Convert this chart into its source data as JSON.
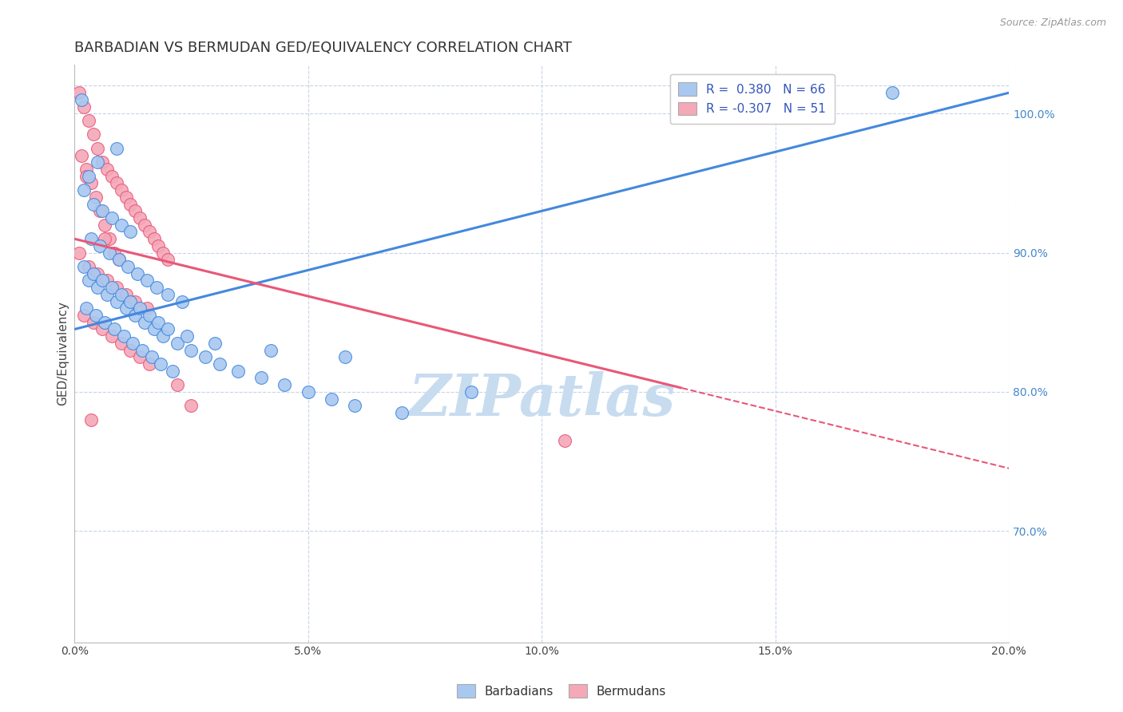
{
  "title": "BARBADIAN VS BERMUDAN GED/EQUIVALENCY CORRELATION CHART",
  "source": "Source: ZipAtlas.com",
  "ylabel": "GED/Equivalency",
  "x_min": 0.0,
  "x_max": 20.0,
  "y_min": 62.0,
  "y_max": 103.5,
  "yticks": [
    70.0,
    80.0,
    90.0,
    100.0
  ],
  "xticks": [
    0.0,
    5.0,
    10.0,
    15.0,
    20.0
  ],
  "blue_R": 0.38,
  "blue_N": 66,
  "pink_R": -0.307,
  "pink_N": 51,
  "blue_color": "#A8C8F0",
  "pink_color": "#F4A8B8",
  "blue_line_color": "#4488DD",
  "pink_line_color": "#E85878",
  "right_tick_color": "#4488CC",
  "watermark_color": "#C8DCF0",
  "legend_text_color": "#3355BB",
  "background_color": "#FFFFFF",
  "grid_color": "#C8D4E8",
  "title_fontsize": 13,
  "axis_fontsize": 10,
  "legend_fontsize": 11,
  "pink_solid_end": 13.0,
  "blue_line_x0": 0.0,
  "blue_line_y0": 84.5,
  "blue_line_x1": 20.0,
  "blue_line_y1": 101.5,
  "pink_line_x0": 0.0,
  "pink_line_y0": 91.0,
  "pink_line_x1": 20.0,
  "pink_line_y1": 74.5,
  "blue_points_x": [
    0.15,
    0.9,
    0.5,
    0.3,
    0.2,
    0.4,
    0.6,
    0.8,
    1.0,
    1.2,
    0.35,
    0.55,
    0.75,
    0.95,
    1.15,
    1.35,
    1.55,
    1.75,
    2.0,
    2.3,
    0.25,
    0.45,
    0.65,
    0.85,
    1.05,
    1.25,
    1.45,
    1.65,
    1.85,
    2.1,
    0.3,
    0.5,
    0.7,
    0.9,
    1.1,
    1.3,
    1.5,
    1.7,
    1.9,
    2.2,
    2.5,
    2.8,
    3.1,
    3.5,
    4.0,
    4.5,
    5.0,
    5.5,
    6.0,
    7.0,
    0.2,
    0.4,
    0.6,
    0.8,
    1.0,
    1.2,
    1.4,
    1.6,
    1.8,
    2.0,
    2.4,
    3.0,
    4.2,
    5.8,
    17.5,
    8.5
  ],
  "blue_points_y": [
    101.0,
    97.5,
    96.5,
    95.5,
    94.5,
    93.5,
    93.0,
    92.5,
    92.0,
    91.5,
    91.0,
    90.5,
    90.0,
    89.5,
    89.0,
    88.5,
    88.0,
    87.5,
    87.0,
    86.5,
    86.0,
    85.5,
    85.0,
    84.5,
    84.0,
    83.5,
    83.0,
    82.5,
    82.0,
    81.5,
    88.0,
    87.5,
    87.0,
    86.5,
    86.0,
    85.5,
    85.0,
    84.5,
    84.0,
    83.5,
    83.0,
    82.5,
    82.0,
    81.5,
    81.0,
    80.5,
    80.0,
    79.5,
    79.0,
    78.5,
    89.0,
    88.5,
    88.0,
    87.5,
    87.0,
    86.5,
    86.0,
    85.5,
    85.0,
    84.5,
    84.0,
    83.5,
    83.0,
    82.5,
    101.5,
    80.0
  ],
  "pink_points_x": [
    0.1,
    0.2,
    0.3,
    0.4,
    0.5,
    0.6,
    0.7,
    0.8,
    0.9,
    1.0,
    1.1,
    1.2,
    1.3,
    1.4,
    1.5,
    1.6,
    1.7,
    1.8,
    1.9,
    2.0,
    0.15,
    0.25,
    0.35,
    0.45,
    0.55,
    0.65,
    0.75,
    0.85,
    0.95,
    0.3,
    0.5,
    0.7,
    0.9,
    1.1,
    1.3,
    1.55,
    0.2,
    0.4,
    0.6,
    0.8,
    1.0,
    1.2,
    1.4,
    1.6,
    2.2,
    2.5,
    0.35,
    0.65,
    10.5,
    0.1,
    0.25
  ],
  "pink_points_y": [
    101.5,
    100.5,
    99.5,
    98.5,
    97.5,
    96.5,
    96.0,
    95.5,
    95.0,
    94.5,
    94.0,
    93.5,
    93.0,
    92.5,
    92.0,
    91.5,
    91.0,
    90.5,
    90.0,
    89.5,
    97.0,
    96.0,
    95.0,
    94.0,
    93.0,
    92.0,
    91.0,
    90.0,
    89.5,
    89.0,
    88.5,
    88.0,
    87.5,
    87.0,
    86.5,
    86.0,
    85.5,
    85.0,
    84.5,
    84.0,
    83.5,
    83.0,
    82.5,
    82.0,
    80.5,
    79.0,
    78.0,
    91.0,
    76.5,
    90.0,
    95.5
  ]
}
